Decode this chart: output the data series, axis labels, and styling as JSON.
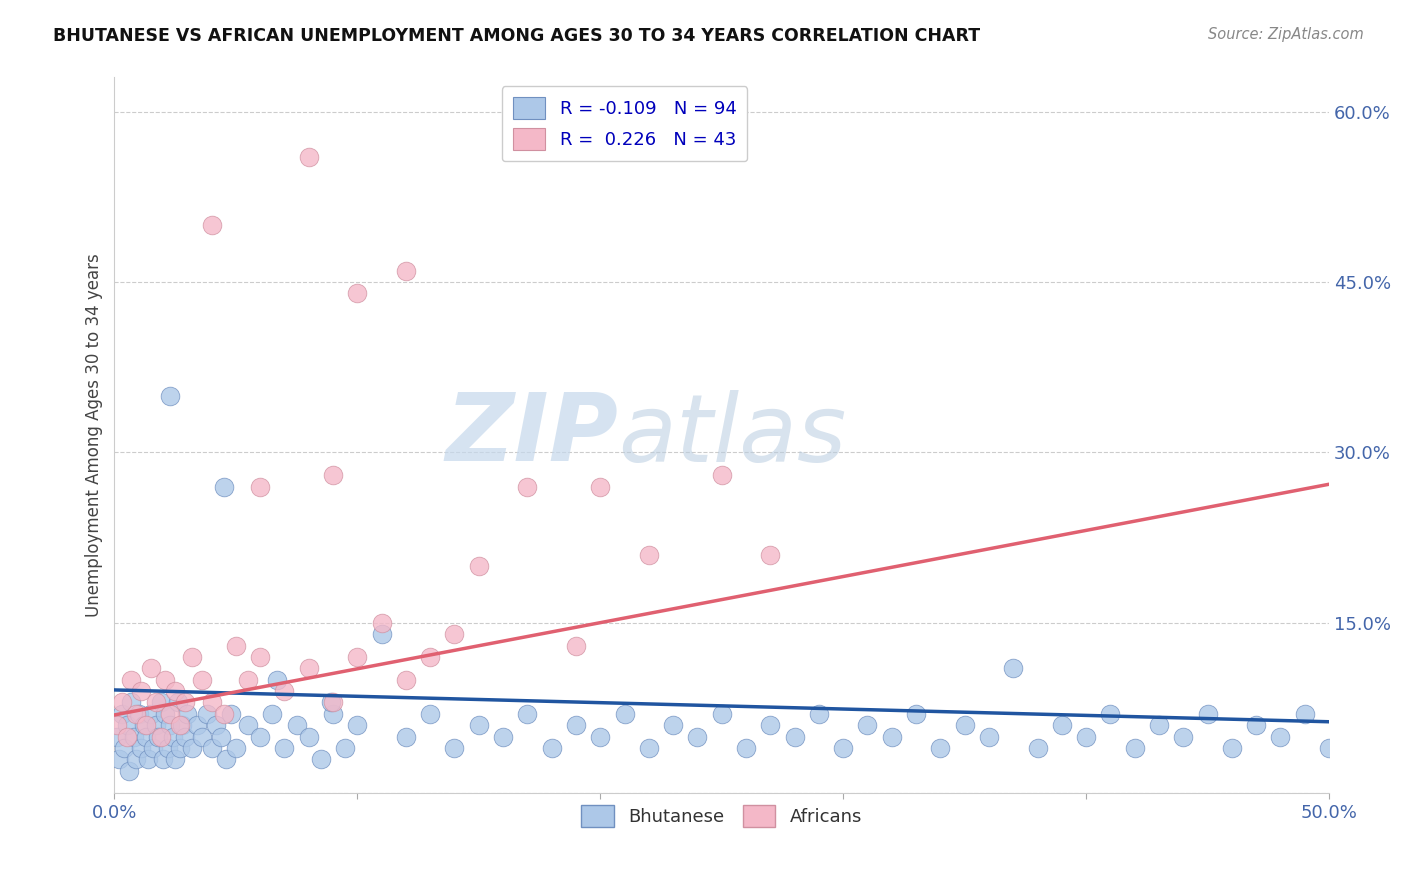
{
  "title": "BHUTANESE VS AFRICAN UNEMPLOYMENT AMONG AGES 30 TO 34 YEARS CORRELATION CHART",
  "source": "Source: ZipAtlas.com",
  "ylabel": "Unemployment Among Ages 30 to 34 years",
  "xlim": [
    0.0,
    0.5
  ],
  "ylim": [
    0.0,
    0.63
  ],
  "blue_R": -0.109,
  "blue_N": 94,
  "pink_R": 0.226,
  "pink_N": 43,
  "blue_color": "#adc8e8",
  "pink_color": "#f4b8c8",
  "blue_edge_color": "#7090c0",
  "pink_edge_color": "#d090a0",
  "blue_line_color": "#2055a0",
  "pink_line_color": "#e06070",
  "watermark_zip": "ZIP",
  "watermark_atlas": "atlas",
  "blue_x": [
    0.001,
    0.002,
    0.003,
    0.004,
    0.005,
    0.006,
    0.007,
    0.008,
    0.009,
    0.01,
    0.011,
    0.012,
    0.013,
    0.014,
    0.015,
    0.016,
    0.017,
    0.018,
    0.019,
    0.02,
    0.021,
    0.022,
    0.023,
    0.024,
    0.025,
    0.026,
    0.027,
    0.028,
    0.029,
    0.03,
    0.032,
    0.034,
    0.036,
    0.038,
    0.04,
    0.042,
    0.044,
    0.046,
    0.048,
    0.05,
    0.055,
    0.06,
    0.065,
    0.07,
    0.075,
    0.08,
    0.085,
    0.09,
    0.095,
    0.1,
    0.11,
    0.12,
    0.13,
    0.14,
    0.15,
    0.16,
    0.17,
    0.18,
    0.19,
    0.2,
    0.21,
    0.22,
    0.23,
    0.24,
    0.25,
    0.26,
    0.27,
    0.28,
    0.29,
    0.3,
    0.31,
    0.32,
    0.33,
    0.34,
    0.35,
    0.36,
    0.37,
    0.38,
    0.39,
    0.4,
    0.41,
    0.42,
    0.43,
    0.44,
    0.45,
    0.46,
    0.47,
    0.48,
    0.49,
    0.5,
    0.023,
    0.045,
    0.067,
    0.089
  ],
  "blue_y": [
    0.05,
    0.03,
    0.07,
    0.04,
    0.06,
    0.02,
    0.08,
    0.05,
    0.03,
    0.07,
    0.04,
    0.06,
    0.05,
    0.03,
    0.07,
    0.04,
    0.06,
    0.05,
    0.08,
    0.03,
    0.07,
    0.04,
    0.06,
    0.05,
    0.03,
    0.08,
    0.04,
    0.06,
    0.05,
    0.07,
    0.04,
    0.06,
    0.05,
    0.07,
    0.04,
    0.06,
    0.05,
    0.03,
    0.07,
    0.04,
    0.06,
    0.05,
    0.07,
    0.04,
    0.06,
    0.05,
    0.03,
    0.07,
    0.04,
    0.06,
    0.14,
    0.05,
    0.07,
    0.04,
    0.06,
    0.05,
    0.07,
    0.04,
    0.06,
    0.05,
    0.07,
    0.04,
    0.06,
    0.05,
    0.07,
    0.04,
    0.06,
    0.05,
    0.07,
    0.04,
    0.06,
    0.05,
    0.07,
    0.04,
    0.06,
    0.05,
    0.11,
    0.04,
    0.06,
    0.05,
    0.07,
    0.04,
    0.06,
    0.05,
    0.07,
    0.04,
    0.06,
    0.05,
    0.07,
    0.04,
    0.35,
    0.27,
    0.1,
    0.08
  ],
  "pink_x": [
    0.001,
    0.003,
    0.005,
    0.007,
    0.009,
    0.011,
    0.013,
    0.015,
    0.017,
    0.019,
    0.021,
    0.023,
    0.025,
    0.027,
    0.029,
    0.032,
    0.036,
    0.04,
    0.045,
    0.05,
    0.055,
    0.06,
    0.07,
    0.08,
    0.09,
    0.1,
    0.11,
    0.12,
    0.13,
    0.14,
    0.06,
    0.09,
    0.1,
    0.15,
    0.17,
    0.19,
    0.2,
    0.22,
    0.25,
    0.27,
    0.08,
    0.12,
    0.04
  ],
  "pink_y": [
    0.06,
    0.08,
    0.05,
    0.1,
    0.07,
    0.09,
    0.06,
    0.11,
    0.08,
    0.05,
    0.1,
    0.07,
    0.09,
    0.06,
    0.08,
    0.12,
    0.1,
    0.08,
    0.07,
    0.13,
    0.1,
    0.12,
    0.09,
    0.11,
    0.08,
    0.12,
    0.15,
    0.1,
    0.12,
    0.14,
    0.27,
    0.28,
    0.44,
    0.2,
    0.27,
    0.13,
    0.27,
    0.21,
    0.28,
    0.21,
    0.56,
    0.46,
    0.5
  ],
  "blue_line_x0": 0.0,
  "blue_line_x1": 0.5,
  "blue_line_y0": 0.091,
  "blue_line_y1": 0.063,
  "pink_line_x0": 0.0,
  "pink_line_x1": 0.5,
  "pink_line_y0": 0.069,
  "pink_line_y1": 0.272
}
